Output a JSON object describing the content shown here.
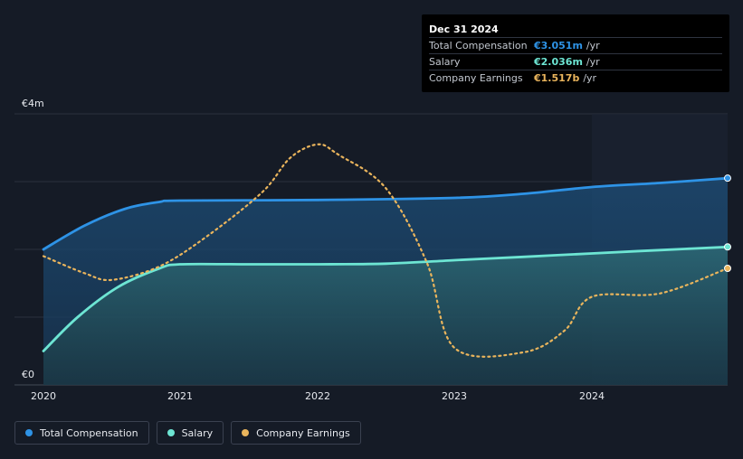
{
  "tooltip": {
    "date": "Dec 31 2024",
    "rows": [
      {
        "label": "Total Compensation",
        "value": "€3.051m",
        "unit": "/yr",
        "color": "#2e93e6"
      },
      {
        "label": "Salary",
        "value": "€2.036m",
        "unit": "/yr",
        "color": "#6de5d3"
      },
      {
        "label": "Company Earnings",
        "value": "€1.517b",
        "unit": "/yr",
        "color": "#e9b45c"
      }
    ]
  },
  "axis": {
    "y_top_label": "€4m",
    "y_bottom_label": "€0",
    "x_ticks": [
      "2020",
      "2021",
      "2022",
      "2023",
      "2024"
    ]
  },
  "legend": [
    {
      "label": "Total Compensation",
      "color": "#2e93e6"
    },
    {
      "label": "Salary",
      "color": "#6de5d3"
    },
    {
      "label": "Company Earnings",
      "color": "#e9b45c"
    }
  ],
  "chart_data": {
    "type": "line",
    "xlim": [
      2020.0,
      2025.0
    ],
    "ylim": [
      0,
      4
    ],
    "y_unit": "€m",
    "series": [
      {
        "name": "Total Compensation",
        "color": "#2e93e6",
        "points": [
          [
            2020.0,
            2.0
          ],
          [
            2020.3,
            2.35
          ],
          [
            2020.6,
            2.6
          ],
          [
            2020.85,
            2.7
          ],
          [
            2021.0,
            2.72
          ],
          [
            2022.0,
            2.73
          ],
          [
            2023.0,
            2.76
          ],
          [
            2023.5,
            2.82
          ],
          [
            2024.0,
            2.92
          ],
          [
            2024.5,
            2.98
          ],
          [
            2025.0,
            3.051
          ]
        ]
      },
      {
        "name": "Salary",
        "color": "#6de5d3",
        "points": [
          [
            2020.0,
            0.5
          ],
          [
            2020.25,
            1.0
          ],
          [
            2020.55,
            1.45
          ],
          [
            2020.85,
            1.72
          ],
          [
            2021.0,
            1.78
          ],
          [
            2021.5,
            1.78
          ],
          [
            2022.0,
            1.78
          ],
          [
            2022.5,
            1.79
          ],
          [
            2023.0,
            1.84
          ],
          [
            2023.5,
            1.89
          ],
          [
            2024.0,
            1.94
          ],
          [
            2024.5,
            1.99
          ],
          [
            2025.0,
            2.036
          ]
        ]
      },
      {
        "name": "Company Earnings",
        "color": "#e9b45c",
        "dashed": true,
        "points": [
          [
            2020.0,
            1.9
          ],
          [
            2020.3,
            1.65
          ],
          [
            2020.5,
            1.55
          ],
          [
            2020.85,
            1.75
          ],
          [
            2021.2,
            2.2
          ],
          [
            2021.6,
            2.85
          ],
          [
            2021.8,
            3.35
          ],
          [
            2022.0,
            3.55
          ],
          [
            2022.15,
            3.4
          ],
          [
            2022.5,
            2.9
          ],
          [
            2022.8,
            1.8
          ],
          [
            2023.0,
            0.55
          ],
          [
            2023.5,
            0.48
          ],
          [
            2023.8,
            0.8
          ],
          [
            2024.0,
            1.3
          ],
          [
            2024.5,
            1.35
          ],
          [
            2025.0,
            1.72
          ]
        ]
      }
    ],
    "forecast_band_start": 2024.0
  }
}
